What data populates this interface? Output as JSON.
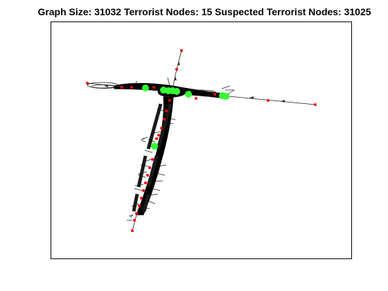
{
  "title": "Graph Size:  31032 Terrorist Nodes:  15 Suspected Terrorist Nodes:  31025",
  "colors": {
    "background": "#ffffff",
    "axes_border": "#000000",
    "edge": "#1a1a1a",
    "suspected_node": "#ff0000",
    "terrorist_node": "#33ff33"
  },
  "graph": {
    "layout": "force-directed",
    "total_nodes": 31032,
    "terrorist_nodes": 15,
    "suspected_terrorist_nodes": 31025
  }
}
